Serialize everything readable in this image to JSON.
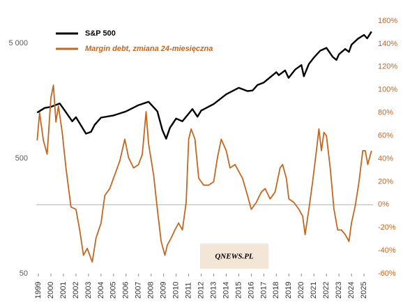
{
  "chart_data": {
    "type": "line",
    "ylog": true,
    "ylim": [
      50,
      7800
    ],
    "yticks": [
      {
        "value": 5000,
        "label": "5 000"
      },
      500,
      50
    ],
    "y2lim": [
      -60,
      160
    ],
    "y2ticks": [
      {
        "value": -60,
        "label": "-60%"
      },
      {
        "value": -40,
        "label": "-40%"
      },
      {
        "value": -20,
        "label": "-20%"
      },
      {
        "value": 0,
        "label": "0%"
      },
      {
        "value": 20,
        "label": "20%"
      },
      {
        "value": 40,
        "label": "40%"
      },
      {
        "value": 60,
        "label": "60%"
      },
      {
        "value": 80,
        "label": "80%"
      },
      {
        "value": 100,
        "label": "100%"
      },
      {
        "value": 120,
        "label": "120%"
      },
      {
        "value": 140,
        "label": "140%"
      },
      {
        "value": 160,
        "label": "160%"
      }
    ],
    "xlim": [
      1998.83,
      2025.72
    ],
    "xticks": [
      1999,
      2000,
      2001,
      2002,
      2003,
      2004,
      2005,
      2006,
      2007,
      2008,
      2009,
      2010,
      2011,
      2012,
      2013,
      2014,
      2015,
      2016,
      2017,
      2018,
      2019,
      2020,
      2021,
      2022,
      2023,
      2024,
      2025
    ],
    "watermark": "QNEWS.PL",
    "series": [
      {
        "name": "S&P 500",
        "color": "#000000",
        "x": [
          1998.9,
          1999.5,
          2000.0,
          2000.7,
          2001.0,
          2001.7,
          2002.0,
          2002.8,
          2003.2,
          2003.5,
          2004.0,
          2005.0,
          2006.0,
          2007.0,
          2007.8,
          2008.5,
          2008.9,
          2009.2,
          2009.5,
          2010.0,
          2010.5,
          2011.3,
          2011.7,
          2012.0,
          2013.0,
          2014.0,
          2015.0,
          2015.7,
          2016.1,
          2016.5,
          2017.0,
          2018.0,
          2018.2,
          2018.7,
          2018.98,
          2019.5,
          2020.0,
          2020.2,
          2020.6,
          2021.0,
          2021.5,
          2022.0,
          2022.5,
          2022.8,
          2023.0,
          2023.5,
          2023.8,
          2024.0,
          2024.5,
          2025.0,
          2025.25,
          2025.6
        ],
        "values": [
          1250,
          1370,
          1400,
          1500,
          1350,
          1050,
          1140,
          820,
          850,
          980,
          1130,
          1180,
          1280,
          1450,
          1550,
          1280,
          880,
          740,
          920,
          1110,
          1050,
          1340,
          1150,
          1300,
          1480,
          1800,
          2050,
          1920,
          1940,
          2170,
          2280,
          2800,
          2640,
          2900,
          2500,
          2950,
          3230,
          2580,
          3300,
          3750,
          4300,
          4550,
          3800,
          3580,
          4000,
          4450,
          4200,
          4850,
          5450,
          5900,
          5500,
          6300
        ]
      },
      {
        "name": "Margin debt, zmiana 24-miesięczna",
        "color": "#c4661f",
        "axis": "y2",
        "x": [
          1998.9,
          1999.1,
          1999.4,
          1999.7,
          2000.0,
          2000.2,
          2000.4,
          2000.6,
          2000.9,
          2001.2,
          2001.6,
          2002.0,
          2002.3,
          2002.6,
          2002.9,
          2003.3,
          2003.6,
          2004.0,
          2004.3,
          2004.7,
          2005.0,
          2005.5,
          2005.9,
          2006.2,
          2006.6,
          2007.0,
          2007.3,
          2007.6,
          2007.8,
          2008.2,
          2008.5,
          2008.8,
          2009.1,
          2009.3,
          2009.6,
          2009.9,
          2010.2,
          2010.5,
          2010.8,
          2011.0,
          2011.2,
          2011.5,
          2011.8,
          2012.2,
          2012.6,
          2013.0,
          2013.3,
          2013.6,
          2014.0,
          2014.3,
          2014.7,
          2015.0,
          2015.3,
          2015.7,
          2016.0,
          2016.4,
          2016.8,
          2017.1,
          2017.5,
          2017.9,
          2018.3,
          2018.5,
          2018.8,
          2019.0,
          2019.4,
          2019.8,
          2020.1,
          2020.3,
          2020.6,
          2020.9,
          2021.2,
          2021.4,
          2021.6,
          2021.8,
          2022.0,
          2022.3,
          2022.6,
          2022.9,
          2023.2,
          2023.5,
          2023.8,
          2024.0,
          2024.3,
          2024.6,
          2024.9,
          2025.1,
          2025.3,
          2025.6
        ],
        "values": [
          56,
          80,
          56,
          44,
          93,
          104,
          72,
          86,
          63,
          32,
          -2,
          -4,
          -22,
          -44,
          -38,
          -50,
          -29,
          -16,
          8,
          14,
          23,
          38,
          57,
          41,
          32,
          35,
          44,
          81,
          53,
          26,
          -4,
          -32,
          -44,
          -35,
          -29,
          -22,
          -16,
          -22,
          2,
          57,
          66,
          57,
          23,
          17,
          17,
          20,
          41,
          57,
          47,
          32,
          35,
          29,
          23,
          8,
          -4,
          2,
          11,
          14,
          5,
          11,
          32,
          35,
          23,
          5,
          2,
          -4,
          -10,
          -26,
          -4,
          20,
          47,
          66,
          47,
          63,
          60,
          32,
          -4,
          -22,
          -22,
          -26,
          -32,
          -16,
          -1,
          20,
          47,
          47,
          35,
          47
        ]
      }
    ]
  }
}
